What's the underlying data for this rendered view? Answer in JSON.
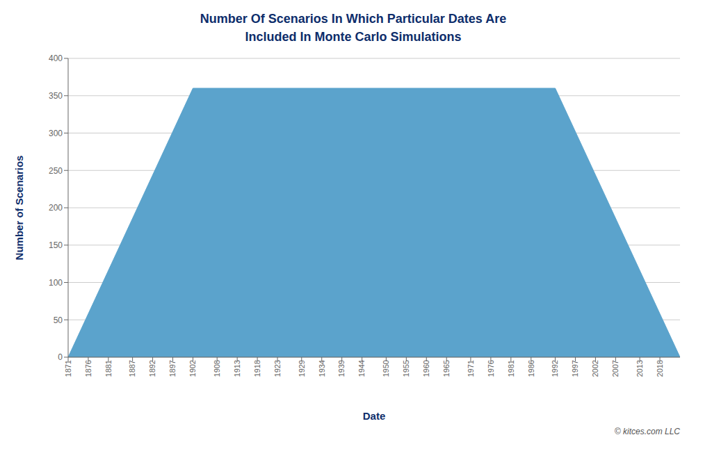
{
  "chart_data": {
    "type": "area",
    "title": "Number Of Scenarios In Which Particular Dates Are\nIncluded In Monte Carlo Simulations",
    "x_label": "Date",
    "y_label": "Number of Scenarios",
    "x": [
      1871,
      1902,
      1992,
      2023
    ],
    "values": [
      0,
      360,
      360,
      0
    ],
    "color": "#5ba3cc",
    "xlim": [
      1871,
      2023
    ],
    "xticks": [
      1871,
      1876,
      1881,
      1887,
      1892,
      1897,
      1902,
      1908,
      1913,
      1918,
      1923,
      1929,
      1934,
      1939,
      1944,
      1950,
      1955,
      1960,
      1965,
      1971,
      1976,
      1981,
      1986,
      1992,
      1997,
      2002,
      2007,
      2013,
      2018
    ],
    "ylim": [
      0,
      400
    ],
    "yticks": [
      0,
      50,
      100,
      150,
      200,
      250,
      300,
      350,
      400
    ],
    "grid": "y",
    "annotations": [
      "© kitces.com LLC"
    ]
  }
}
